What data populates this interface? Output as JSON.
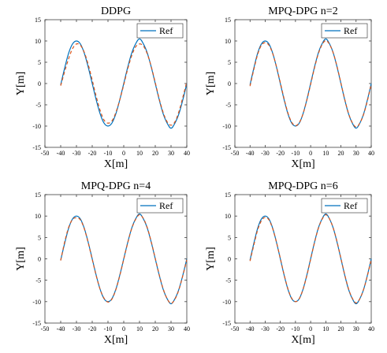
{
  "chart_data": [
    {
      "type": "line",
      "title": "DDPG",
      "xlabel": "X[m]",
      "ylabel": "Y[m]",
      "xlim": [
        -50,
        40
      ],
      "ylim": [
        -15,
        15
      ],
      "xticks": [
        -50,
        -40,
        -30,
        -20,
        -10,
        0,
        10,
        20,
        30,
        40
      ],
      "yticks": [
        -15,
        -10,
        -5,
        0,
        5,
        10,
        15
      ],
      "grid": false,
      "legend_position": "top-right",
      "series": [
        {
          "name": "Ref",
          "color": "#0072BD",
          "style": "solid",
          "x": [
            -40,
            -37.5,
            -35,
            -32.5,
            -30,
            -27.5,
            -25,
            -22.5,
            -20,
            -17.5,
            -15,
            -12.5,
            -10,
            -7.5,
            -5,
            -2.5,
            0,
            2.5,
            5,
            7.5,
            10,
            12.5,
            15,
            17.5,
            20,
            22.5,
            25,
            27.5,
            30,
            32.5,
            35,
            37.5,
            40
          ],
          "y": [
            -0.3,
            3.6,
            7.1,
            9.3,
            10.0,
            9.3,
            7.1,
            3.8,
            0,
            -3.8,
            -7.1,
            -9.3,
            -10.0,
            -9.3,
            -7.1,
            -3.8,
            0,
            3.8,
            7.1,
            9.3,
            10.5,
            9.3,
            7.1,
            3.8,
            0,
            -3.8,
            -7.1,
            -9.3,
            -10.5,
            -9.3,
            -7.1,
            -3.8,
            0
          ]
        },
        {
          "name": "",
          "color": "#D95319",
          "style": "dashed",
          "x": [
            -40,
            -37.5,
            -35,
            -32.5,
            -30,
            -27.5,
            -25,
            -22.5,
            -20,
            -17.5,
            -15,
            -12.5,
            -10,
            -7.5,
            -5,
            -2.5,
            0,
            2.5,
            5,
            7.5,
            10,
            12.5,
            15,
            17.5,
            20,
            22.5,
            25,
            27.5,
            30,
            32.5,
            35,
            37.5,
            40
          ],
          "y": [
            -0.5,
            2.8,
            5.8,
            8.2,
            9.3,
            9.0,
            7.3,
            4.4,
            0.8,
            -3.0,
            -6.3,
            -8.6,
            -9.3,
            -8.8,
            -6.8,
            -3.8,
            -0.3,
            3.4,
            6.5,
            8.6,
            9.3,
            8.8,
            6.9,
            3.9,
            0.2,
            -3.6,
            -6.8,
            -9.0,
            -9.8,
            -9.0,
            -6.6,
            -3.2,
            0.4
          ]
        }
      ]
    },
    {
      "type": "line",
      "title": "MPQ-DPG n=2",
      "xlabel": "X[m]",
      "ylabel": "Y[m]",
      "xlim": [
        -50,
        40
      ],
      "ylim": [
        -15,
        15
      ],
      "xticks": [
        -50,
        -40,
        -30,
        -20,
        -10,
        0,
        10,
        20,
        30,
        40
      ],
      "yticks": [
        -15,
        -10,
        -5,
        0,
        5,
        10,
        15
      ],
      "grid": false,
      "legend_position": "top-right",
      "series": [
        {
          "name": "Ref",
          "color": "#0072BD",
          "style": "solid",
          "x": [
            -40,
            -37.5,
            -35,
            -32.5,
            -30,
            -27.5,
            -25,
            -22.5,
            -20,
            -17.5,
            -15,
            -12.5,
            -10,
            -7.5,
            -5,
            -2.5,
            0,
            2.5,
            5,
            7.5,
            10,
            12.5,
            15,
            17.5,
            20,
            22.5,
            25,
            27.5,
            30,
            32.5,
            35,
            37.5,
            40
          ],
          "y": [
            -0.3,
            3.6,
            7.1,
            9.3,
            10.0,
            9.3,
            7.1,
            3.8,
            0,
            -3.8,
            -7.1,
            -9.3,
            -10.0,
            -9.3,
            -7.1,
            -3.8,
            0,
            3.8,
            7.1,
            9.3,
            10.5,
            9.3,
            7.1,
            3.8,
            0,
            -3.8,
            -7.1,
            -9.3,
            -10.5,
            -9.3,
            -7.1,
            -3.8,
            0
          ]
        },
        {
          "name": "",
          "color": "#D95319",
          "style": "dashed",
          "x": [
            -40,
            -37.5,
            -35,
            -32.5,
            -30,
            -27.5,
            -25,
            -22.5,
            -20,
            -17.5,
            -15,
            -12.5,
            -10,
            -7.5,
            -5,
            -2.5,
            0,
            2.5,
            5,
            7.5,
            10,
            12.5,
            15,
            17.5,
            20,
            22.5,
            25,
            27.5,
            30,
            32.5,
            35,
            37.5,
            40
          ],
          "y": [
            -0.6,
            3.3,
            6.8,
            9.0,
            9.6,
            9.0,
            7.0,
            3.9,
            0.2,
            -3.6,
            -6.9,
            -9.1,
            -9.9,
            -9.2,
            -7.1,
            -3.9,
            -0.2,
            3.6,
            6.9,
            9.1,
            10.1,
            9.2,
            7.1,
            3.9,
            0.1,
            -3.7,
            -7.0,
            -9.2,
            -10.2,
            -9.3,
            -7.2,
            -4.0,
            -0.1
          ]
        }
      ]
    },
    {
      "type": "line",
      "title": "MPQ-DPG n=4",
      "xlabel": "X[m]",
      "ylabel": "Y[m]",
      "xlim": [
        -50,
        40
      ],
      "ylim": [
        -15,
        15
      ],
      "xticks": [
        -50,
        -40,
        -30,
        -20,
        -10,
        0,
        10,
        20,
        30,
        40
      ],
      "yticks": [
        -15,
        -10,
        -5,
        0,
        5,
        10,
        15
      ],
      "grid": false,
      "legend_position": "top-right",
      "series": [
        {
          "name": "Ref",
          "color": "#0072BD",
          "style": "solid",
          "x": [
            -40,
            -37.5,
            -35,
            -32.5,
            -30,
            -27.5,
            -25,
            -22.5,
            -20,
            -17.5,
            -15,
            -12.5,
            -10,
            -7.5,
            -5,
            -2.5,
            0,
            2.5,
            5,
            7.5,
            10,
            12.5,
            15,
            17.5,
            20,
            22.5,
            25,
            27.5,
            30,
            32.5,
            35,
            37.5,
            40
          ],
          "y": [
            -0.3,
            3.6,
            7.1,
            9.3,
            10.0,
            9.3,
            7.1,
            3.8,
            0,
            -3.8,
            -7.1,
            -9.3,
            -10.0,
            -9.3,
            -7.1,
            -3.8,
            0,
            3.8,
            7.1,
            9.3,
            10.5,
            9.3,
            7.1,
            3.8,
            0,
            -3.8,
            -7.1,
            -9.3,
            -10.5,
            -9.3,
            -7.1,
            -3.8,
            0
          ]
        },
        {
          "name": "",
          "color": "#D95319",
          "style": "dashed",
          "x": [
            -40,
            -37.5,
            -35,
            -32.5,
            -30,
            -27.5,
            -25,
            -22.5,
            -20,
            -17.5,
            -15,
            -12.5,
            -10,
            -7.5,
            -5,
            -2.5,
            0,
            2.5,
            5,
            7.5,
            10,
            12.5,
            15,
            17.5,
            20,
            22.5,
            25,
            27.5,
            30,
            32.5,
            35,
            37.5,
            40
          ],
          "y": [
            -0.4,
            3.9,
            7.3,
            9.2,
            9.6,
            9.1,
            7.0,
            3.7,
            -0.1,
            -3.9,
            -7.1,
            -9.2,
            -10.1,
            -9.4,
            -7.2,
            -3.9,
            -0.1,
            3.7,
            7.0,
            9.2,
            10.3,
            9.4,
            7.2,
            3.9,
            0.1,
            -3.7,
            -7.0,
            -9.3,
            -10.4,
            -9.4,
            -7.2,
            -3.9,
            -0.2
          ]
        }
      ]
    },
    {
      "type": "line",
      "title": "MPQ-DPG n=6",
      "xlabel": "X[m]",
      "ylabel": "Y[m]",
      "xlim": [
        -50,
        40
      ],
      "ylim": [
        -15,
        15
      ],
      "xticks": [
        -50,
        -40,
        -30,
        -20,
        -10,
        0,
        10,
        20,
        30,
        40
      ],
      "yticks": [
        -15,
        -10,
        -5,
        0,
        5,
        10,
        15
      ],
      "grid": false,
      "legend_position": "top-right",
      "series": [
        {
          "name": "Ref",
          "color": "#0072BD",
          "style": "solid",
          "x": [
            -40,
            -37.5,
            -35,
            -32.5,
            -30,
            -27.5,
            -25,
            -22.5,
            -20,
            -17.5,
            -15,
            -12.5,
            -10,
            -7.5,
            -5,
            -2.5,
            0,
            2.5,
            5,
            7.5,
            10,
            12.5,
            15,
            17.5,
            20,
            22.5,
            25,
            27.5,
            30,
            32.5,
            35,
            37.5,
            40
          ],
          "y": [
            -0.3,
            3.6,
            7.1,
            9.3,
            10.0,
            9.3,
            7.1,
            3.8,
            0,
            -3.8,
            -7.1,
            -9.3,
            -10.0,
            -9.3,
            -7.1,
            -3.8,
            0,
            3.8,
            7.1,
            9.3,
            10.5,
            9.3,
            7.1,
            3.8,
            0,
            -3.8,
            -7.1,
            -9.3,
            -10.5,
            -9.3,
            -7.1,
            -3.8,
            0
          ]
        },
        {
          "name": "",
          "color": "#D95319",
          "style": "dashed",
          "x": [
            -40,
            -37.5,
            -35,
            -32.5,
            -30,
            -27.5,
            -25,
            -22.5,
            -20,
            -17.5,
            -15,
            -12.5,
            -10,
            -7.5,
            -5,
            -2.5,
            0,
            2.5,
            5,
            7.5,
            10,
            12.5,
            15,
            17.5,
            20,
            22.5,
            25,
            27.5,
            30,
            32.5,
            35,
            37.5,
            40
          ],
          "y": [
            -0.5,
            3.2,
            6.7,
            8.9,
            9.7,
            9.1,
            7.0,
            3.8,
            0.1,
            -3.7,
            -7.0,
            -9.2,
            -10.0,
            -9.3,
            -7.1,
            -3.9,
            -0.1,
            3.7,
            7.0,
            9.2,
            10.3,
            9.3,
            7.1,
            3.9,
            0.1,
            -3.7,
            -7.0,
            -9.2,
            -10.3,
            -9.3,
            -7.1,
            -3.9,
            -0.1
          ]
        }
      ]
    }
  ]
}
